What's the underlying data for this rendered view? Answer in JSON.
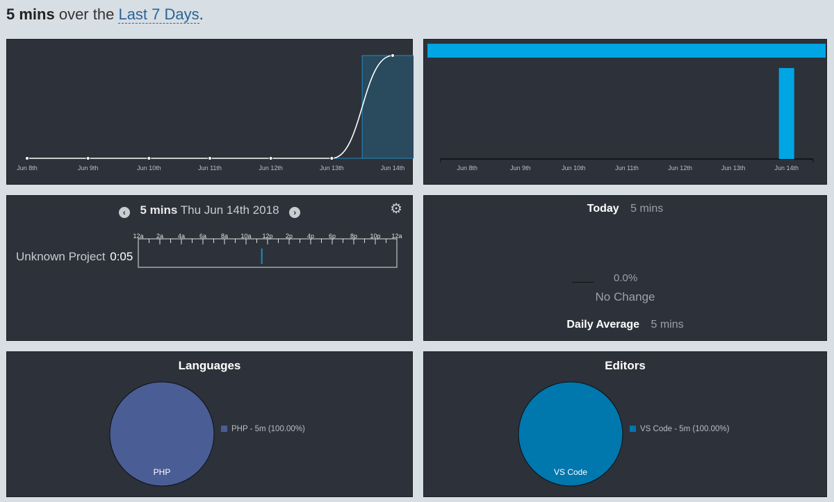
{
  "header": {
    "duration": "5 mins",
    "over_text": "over the",
    "range_link": "Last 7 Days",
    "period": "."
  },
  "activity_chart": {
    "chart_data": {
      "type": "line",
      "x": [
        "Jun 8th",
        "Jun 9th",
        "Jun 10th",
        "Jun 11th",
        "Jun 12th",
        "Jun 13th",
        "Jun 14th"
      ],
      "series": [
        {
          "values": [
            0,
            0,
            0,
            0,
            0,
            0,
            5
          ]
        }
      ],
      "bar_highlight": {
        "category": "Jun 14th",
        "value": 5
      },
      "ylim": [
        0,
        5
      ],
      "grid": false
    }
  },
  "daily_bars_chart": {
    "chart_data": {
      "type": "bar",
      "categories": [
        "Jun 8th",
        "Jun 9th",
        "Jun 10th",
        "Jun 11th",
        "Jun 12th",
        "Jun 13th",
        "Jun 14th"
      ],
      "values": [
        0,
        0,
        0,
        0,
        0,
        0,
        5
      ],
      "total_bar": 5,
      "color": "#00a5e3"
    }
  },
  "timeline": {
    "duration": "5 mins",
    "date": "Thu Jun 14th 2018",
    "prev_icon": "chevron-left-icon",
    "next_icon": "chevron-right-icon",
    "settings_icon": "gear-icon",
    "hours": [
      "12a",
      "2a",
      "4a",
      "6a",
      "8a",
      "10a",
      "12p",
      "2p",
      "4p",
      "6p",
      "8p",
      "10p",
      "12a"
    ],
    "projects": [
      {
        "name": "Unknown Project",
        "time": "0:05",
        "start_hour": 11.4
      }
    ]
  },
  "today": {
    "label": "Today",
    "value": "5 mins",
    "change_pct": "0.0%",
    "change_text": "No Change",
    "avg_label": "Daily Average",
    "avg_value": "5 mins"
  },
  "languages": {
    "title": "Languages",
    "chart_data": {
      "type": "pie",
      "slices": [
        {
          "name": "PHP",
          "value": 100.0,
          "legend": "PHP - 5m (100.00%)",
          "color": "#4a5d94"
        }
      ]
    }
  },
  "editors": {
    "title": "Editors",
    "chart_data": {
      "type": "pie",
      "slices": [
        {
          "name": "VS Code",
          "value": 100.0,
          "legend": "VS Code - 5m (100.00%)",
          "color": "#0077ad"
        }
      ]
    }
  }
}
